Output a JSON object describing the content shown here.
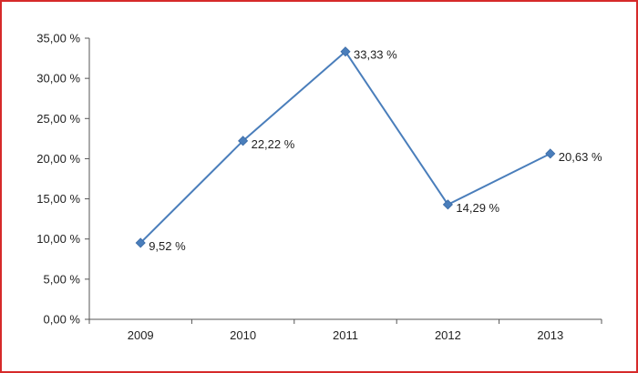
{
  "chart_data": {
    "type": "line",
    "title": "",
    "xlabel": "",
    "ylabel": "",
    "categories": [
      "2009",
      "2010",
      "2011",
      "2012",
      "2013"
    ],
    "series": [
      {
        "values": [
          9.52,
          22.22,
          33.33,
          14.29,
          20.63
        ],
        "data_labels": [
          "9,52 %",
          "22,22 %",
          "33,33 %",
          "14,29 %",
          "20,63 %"
        ],
        "color": "#4a7ebb",
        "marker": "diamond"
      }
    ],
    "ylim": [
      0,
      35
    ],
    "yticks": [
      0,
      5,
      10,
      15,
      20,
      25,
      30,
      35
    ],
    "ytick_labels": [
      "0,00 %",
      "5,00 %",
      "10,00 %",
      "15,00 %",
      "20,00 %",
      "25,00 %",
      "30,00 %",
      "35,00 %"
    ],
    "grid": false,
    "legend": "none"
  }
}
